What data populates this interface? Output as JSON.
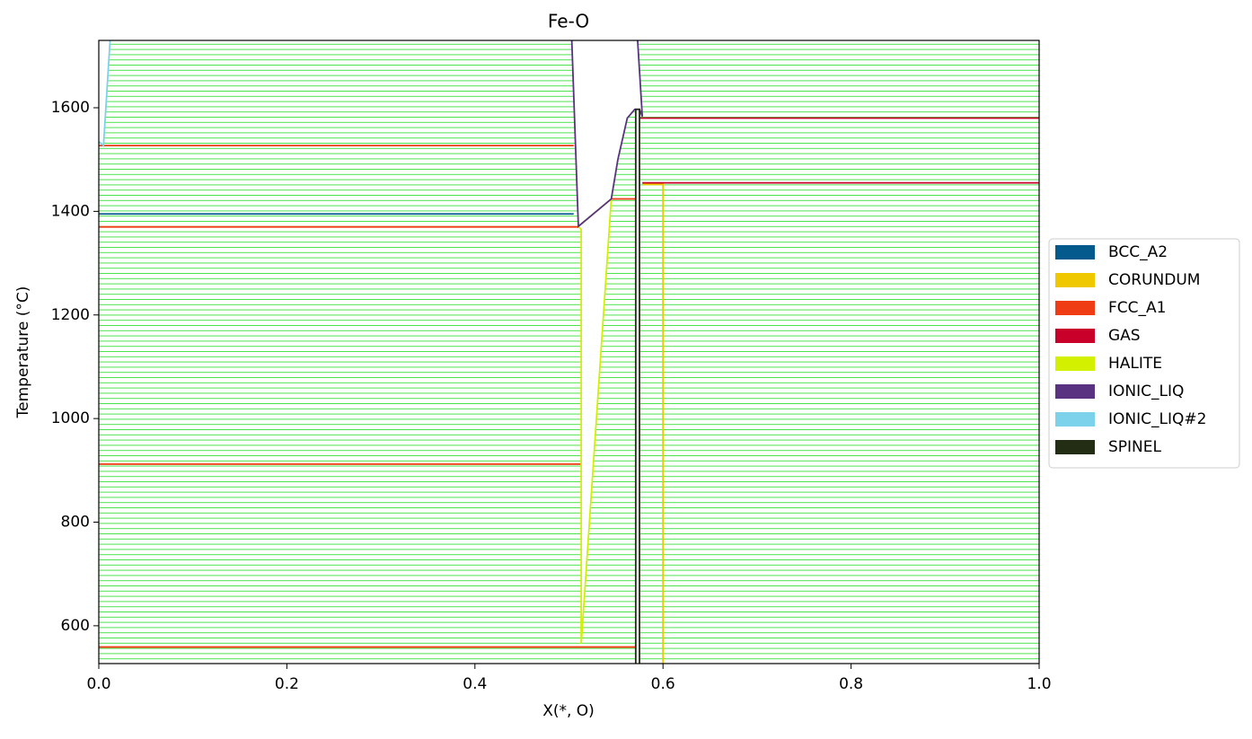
{
  "chart_data": {
    "type": "phase-diagram",
    "title": "Fe-O",
    "xlabel": "X(*, O)",
    "ylabel": "Temperature (°C)",
    "xlim": [
      0,
      1
    ],
    "ylim": [
      527,
      1730
    ],
    "xticks": [
      {
        "value": 0,
        "label": "0.0"
      },
      0.2,
      0.4,
      0.6,
      0.8,
      {
        "value": 1,
        "label": "1.0"
      }
    ],
    "yticks": [
      600,
      800,
      1000,
      1200,
      1400,
      1600
    ],
    "tieline_color": "#22dd22",
    "regions": [
      {
        "x": [
          0,
          0.513,
          0.513,
          0.51,
          0.503,
          0.012,
          0.005,
          0
        ],
        "y": [
          527,
          527,
          1365,
          1371,
          1730,
          1730,
          1527,
          1535
        ]
      },
      {
        "x": [
          0.513,
          0.571,
          0.571,
          0.545,
          0.513
        ],
        "y": [
          527,
          527,
          1424,
          1424,
          565
        ]
      },
      {
        "x": [
          0.545,
          0.571,
          0.571,
          0.562,
          0.552
        ],
        "y": [
          1424,
          1424,
          1597,
          1580,
          1500
        ]
      },
      {
        "x": [
          0.575,
          1,
          1,
          0.573,
          0.578,
          0.575
        ],
        "y": [
          527,
          527,
          1730,
          1730,
          1583,
          1597
        ]
      }
    ],
    "series": [
      {
        "name": "BCC_A2",
        "color": "#045a8d",
        "x": [
          0,
          0.505
        ],
        "y": [
          1395,
          1395
        ]
      },
      {
        "name": "CORUNDUM",
        "color": "#f0c800",
        "x": [
          0.6,
          0.6,
          0.578
        ],
        "y": [
          527,
          1452,
          1452
        ]
      },
      {
        "name": "FCC_A1",
        "color": "#f03c14",
        "x": [
          0,
          0.505,
          null,
          0,
          0.51,
          null,
          0,
          0.513,
          null,
          0,
          0.571,
          null,
          0.545,
          0.571
        ],
        "y": [
          1527,
          1527,
          null,
          1370,
          1370,
          null,
          912,
          912,
          null,
          559,
          559,
          null,
          1424,
          1424
        ]
      },
      {
        "name": "GAS",
        "color": "#c8002a",
        "x": [
          0.575,
          1,
          null,
          0.578,
          1
        ],
        "y": [
          1580,
          1580,
          null,
          1455,
          1455
        ]
      },
      {
        "name": "HALITE",
        "color": "#d2f000",
        "x": [
          0.51,
          0.513,
          0.513,
          0.545,
          null,
          0.51,
          0.545
        ],
        "y": [
          1371,
          1365,
          565,
          1424,
          null,
          1371,
          1424
        ]
      },
      {
        "name": "IONIC_LIQ",
        "color": "#5a3282",
        "x": [
          0.503,
          0.51,
          0.545,
          0.552,
          0.562,
          0.57,
          0.575,
          0.578,
          0.573
        ],
        "y": [
          1730,
          1371,
          1424,
          1500,
          1580,
          1597,
          1597,
          1583,
          1730
        ]
      },
      {
        "name": "IONIC_LIQ#2",
        "color": "#7dd2eb",
        "x": [
          0,
          0.005,
          0.012
        ],
        "y": [
          1535,
          1527,
          1730
        ]
      },
      {
        "name": "SPINEL",
        "color": "#232d14",
        "x": [
          0.571,
          0.571,
          0.575,
          0.575
        ],
        "y": [
          527,
          1597,
          1597,
          527
        ]
      }
    ]
  }
}
